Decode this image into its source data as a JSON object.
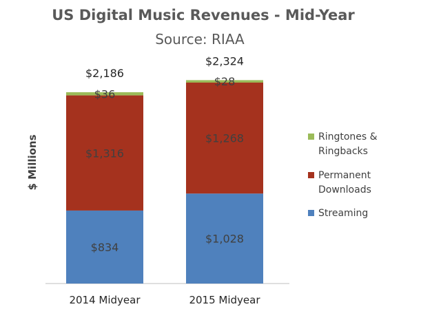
{
  "chart_data": {
    "type": "bar",
    "stacked": true,
    "title": "US Digital Music Revenues - Mid-Year",
    "subtitle": "Source: RIAA",
    "ylabel": "$ Millions",
    "xlabel": "",
    "categories": [
      "2014 Midyear",
      "2015 Midyear"
    ],
    "series": [
      {
        "name": "Streaming",
        "values": [
          834,
          1028
        ],
        "color": "#4F81BD",
        "labels": [
          "$834",
          "$1,028"
        ]
      },
      {
        "name": "Permanent Downloads",
        "values": [
          1316,
          1268
        ],
        "color": "#A5321E",
        "labels": [
          "$1,316",
          "$1,268"
        ]
      },
      {
        "name": "Ringtones & Ringbacks",
        "values": [
          36,
          28
        ],
        "color": "#9BBB59",
        "labels": [
          "$36",
          "$28"
        ]
      }
    ],
    "totals": [
      "$2,186",
      "$2,324"
    ],
    "legend": [
      {
        "lines": [
          "Ringtones &",
          "Ringbacks"
        ],
        "color": "#9BBB59"
      },
      {
        "lines": [
          "Permanent",
          "Downloads"
        ],
        "color": "#A5321E"
      },
      {
        "lines": [
          "Streaming"
        ],
        "color": "#4F81BD"
      }
    ],
    "ylim": [
      0,
      2400
    ],
    "grid": false,
    "legend_position": "right"
  }
}
